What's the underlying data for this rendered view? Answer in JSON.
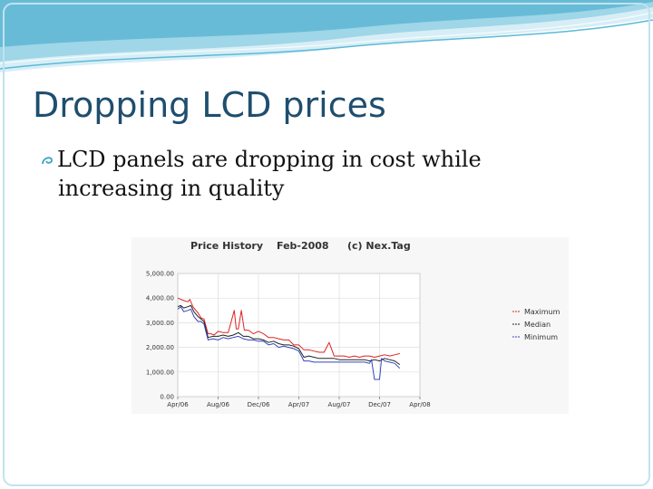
{
  "slide": {
    "title": "Dropping LCD prices",
    "bullet_line1": "LCD panels are dropping in cost while",
    "bullet_line2": "increasing in quality",
    "bullet_icon": "swirl-bullet-icon",
    "accent_color": "#3aa6c8",
    "title_color": "#1f4e6e"
  },
  "chart_data": {
    "type": "line",
    "title_parts": [
      "Price History",
      "Feb-2008",
      "(c) Nex.Tag"
    ],
    "xlabel": "",
    "ylabel": "",
    "x_tick_labels": [
      "Apr/06",
      "Aug/06",
      "Dec/06",
      "Apr/07",
      "Aug/07",
      "Dec/07",
      "Apr/08"
    ],
    "y_tick_labels": [
      "0.00",
      "1,000.00",
      "2,000.00",
      "3,000.00",
      "4,000.00",
      "5,000.00"
    ],
    "y_ticks": [
      0,
      1000,
      2000,
      3000,
      4000,
      5000
    ],
    "ylim": [
      0,
      5000
    ],
    "xlim": [
      0,
      24
    ],
    "grid": true,
    "legend_position": "right",
    "series": [
      {
        "name": "Maximum",
        "color": "#dd2222",
        "x": [
          0,
          0.3,
          0.6,
          1,
          1.2,
          1.5,
          1.8,
          2,
          2.3,
          2.6,
          3,
          3.3,
          3.6,
          4,
          4.5,
          5,
          5.6,
          5.8,
          6,
          6.3,
          6.6,
          7,
          7.5,
          8,
          8.5,
          9,
          9.5,
          10,
          10.5,
          11,
          11.5,
          12,
          12.5,
          13,
          13.5,
          14,
          14.5,
          15,
          15.5,
          16,
          16.5,
          17,
          17.5,
          18,
          18.5,
          19,
          19.5,
          20,
          20.5,
          21,
          21.5,
          22
        ],
        "y": [
          4000,
          3950,
          3900,
          3850,
          3950,
          3650,
          3500,
          3400,
          3200,
          3150,
          2550,
          2550,
          2500,
          2650,
          2600,
          2600,
          3500,
          2750,
          2750,
          3500,
          2700,
          2700,
          2550,
          2650,
          2550,
          2400,
          2400,
          2350,
          2300,
          2300,
          2100,
          2100,
          1900,
          1900,
          1850,
          1800,
          1800,
          2200,
          1650,
          1650,
          1650,
          1600,
          1650,
          1600,
          1650,
          1650,
          1600,
          1650,
          1700,
          1650,
          1700,
          1750
        ]
      },
      {
        "name": "Median",
        "color": "#222222",
        "x": [
          0,
          0.3,
          0.6,
          1,
          1.3,
          1.6,
          2,
          2.3,
          2.6,
          3,
          3.5,
          4,
          4.5,
          5,
          5.5,
          6,
          6.5,
          7,
          7.5,
          8,
          8.5,
          9,
          9.5,
          10,
          10.5,
          11,
          11.5,
          12,
          12.5,
          13,
          13.5,
          14,
          14.5,
          15,
          15.5,
          16,
          16.5,
          17,
          17.5,
          18,
          18.5,
          19,
          19.5,
          20,
          20.5,
          21,
          21.5,
          22
        ],
        "y": [
          3650,
          3700,
          3600,
          3650,
          3700,
          3450,
          3250,
          3150,
          3050,
          2400,
          2450,
          2450,
          2500,
          2450,
          2500,
          2600,
          2450,
          2450,
          2350,
          2350,
          2300,
          2200,
          2250,
          2150,
          2100,
          2100,
          2050,
          1950,
          1600,
          1650,
          1600,
          1550,
          1550,
          1550,
          1550,
          1500,
          1500,
          1500,
          1500,
          1500,
          1500,
          1450,
          1500,
          1450,
          1550,
          1500,
          1450,
          1300
        ]
      },
      {
        "name": "Minimum",
        "color": "#3344bb",
        "x": [
          0,
          0.3,
          0.6,
          1,
          1.3,
          1.6,
          2,
          2.3,
          2.6,
          3,
          3.5,
          4,
          4.5,
          5,
          5.5,
          6,
          6.5,
          7,
          7.5,
          8,
          8.5,
          9,
          9.5,
          10,
          10.5,
          11,
          11.5,
          12,
          12.5,
          13,
          13.5,
          14,
          14.5,
          15,
          15.5,
          16,
          16.5,
          17,
          17.5,
          18,
          18.5,
          19,
          19.2,
          19.5,
          20,
          20.2,
          20.5,
          21,
          21.5,
          22
        ],
        "y": [
          3550,
          3650,
          3450,
          3500,
          3550,
          3250,
          3050,
          3050,
          2950,
          2300,
          2350,
          2300,
          2400,
          2350,
          2400,
          2450,
          2350,
          2300,
          2300,
          2250,
          2250,
          2100,
          2150,
          2000,
          2050,
          2000,
          1950,
          1850,
          1450,
          1450,
          1400,
          1400,
          1400,
          1400,
          1400,
          1400,
          1400,
          1400,
          1400,
          1400,
          1400,
          1350,
          1500,
          700,
          700,
          1550,
          1450,
          1400,
          1350,
          1150
        ]
      }
    ]
  }
}
